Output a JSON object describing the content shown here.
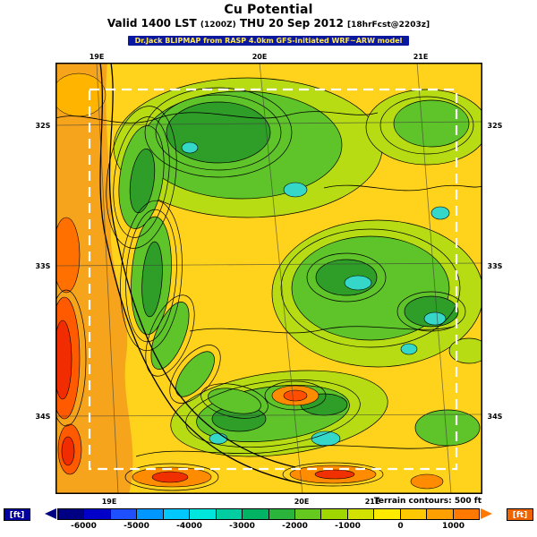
{
  "header": {
    "title": "Cu Potential",
    "valid_line": {
      "valid": "Valid 1400 LST",
      "zulu": "(1200Z)",
      "date": "THU 20 Sep 2012",
      "fcst": "[18hrFcst@2203z]"
    },
    "credit": "Dr.Jack BLIPMAP from RASP 4.0km GFS-initiated WRF~ARW model"
  },
  "axes": {
    "lat_left": [
      "32S",
      "33S",
      "34S"
    ],
    "lat_right": [
      "32S",
      "33S",
      "34S"
    ],
    "lon_top": [
      "19E",
      "20E",
      "21E"
    ],
    "lon_bottom": [
      "19E",
      "20E",
      "21E"
    ]
  },
  "legend": {
    "terrain_note": "Terrain contours: 500 ft",
    "unit_left": "[ft]",
    "unit_right": "[ft]",
    "ticks": [
      "-6000",
      "-5000",
      "-4000",
      "-3000",
      "-2000",
      "-1000",
      "0",
      "1000"
    ],
    "colors": [
      "#000082",
      "#0000c8",
      "#1e50ff",
      "#0096ff",
      "#00c8ff",
      "#00e6dc",
      "#00cda0",
      "#00b464",
      "#2ab43c",
      "#64c81e",
      "#a0d700",
      "#d2e100",
      "#ffeb00",
      "#ffc800",
      "#ffa000",
      "#ff7800"
    ],
    "accent_blue": "#0000a0",
    "accent_orange": "#f06400"
  }
}
